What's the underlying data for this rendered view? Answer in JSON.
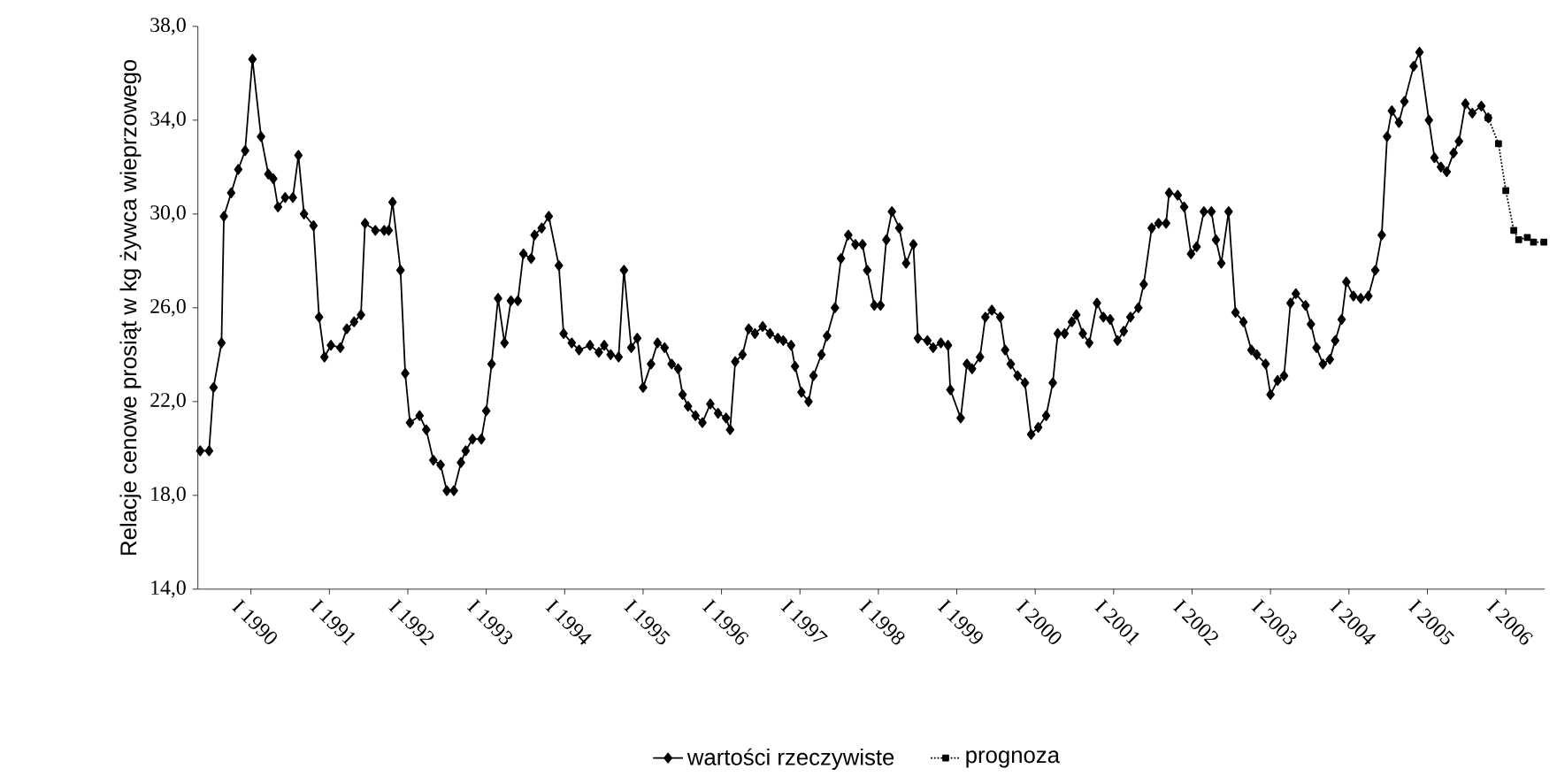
{
  "chart_data": {
    "type": "line",
    "ylabel": "Relacje cenowe prosiąt w kg żywca wieprzowego",
    "xlim": [
      "1989-04-29",
      "2006-07-01"
    ],
    "xticks": [
      {
        "value": "1990-01",
        "label": "I 1990"
      },
      {
        "value": "1991-01",
        "label": "I 1991"
      },
      {
        "value": "1992-01",
        "label": "I 1992"
      },
      {
        "value": "1993-01",
        "label": "I 1993"
      },
      {
        "value": "1994-01",
        "label": "I 1994"
      },
      {
        "value": "1995-01",
        "label": "I 1995"
      },
      {
        "value": "1996-01",
        "label": "I 1996"
      },
      {
        "value": "1997-01",
        "label": "I 1997"
      },
      {
        "value": "1998-01",
        "label": "I 1998"
      },
      {
        "value": "1999-01",
        "label": "I 1999"
      },
      {
        "value": "2000-01",
        "label": "I 2000"
      },
      {
        "value": "2001-01",
        "label": "I 2001"
      },
      {
        "value": "2002-01",
        "label": "I 2002"
      },
      {
        "value": "2003-01",
        "label": "I 2003"
      },
      {
        "value": "2004-01",
        "label": "I 2004"
      },
      {
        "value": "2005-01",
        "label": "I 2005"
      },
      {
        "value": "2006-01",
        "label": "I 2006"
      }
    ],
    "ylim": [
      14,
      38
    ],
    "yticks": [
      {
        "value": 14,
        "label": "14,0"
      },
      {
        "value": 18,
        "label": "18,0"
      },
      {
        "value": 22,
        "label": "22,0"
      },
      {
        "value": 26,
        "label": "26,0"
      },
      {
        "value": 30,
        "label": "30,0"
      },
      {
        "value": 34,
        "label": "34,0"
      },
      {
        "value": 38,
        "label": "38,0"
      }
    ],
    "grid": false,
    "legend": "bottom",
    "series": [
      {
        "name": "wartości rzeczywiste",
        "color": "#000000",
        "marker": "diamond",
        "line_style": "solid",
        "x": [
          "1989-05-10",
          "1989-06-20",
          "1989-07-11",
          "1989-08-17",
          "1989-08-28",
          "1989-10-01",
          "1989-11-03",
          "1989-12-05",
          "1990-01-08",
          "1990-02-17",
          "1990-03-23",
          "1990-04-15",
          "1990-05-07",
          "1990-06-09",
          "1990-07-15",
          "1990-08-10",
          "1990-09-05",
          "1990-10-19",
          "1990-11-14",
          "1990-12-09",
          "1991-01-08",
          "1991-02-21",
          "1991-03-23",
          "1991-04-26",
          "1991-05-28",
          "1991-06-16",
          "1991-08-03",
          "1991-09-13",
          "1991-10-04",
          "1991-10-22",
          "1991-11-28",
          "1991-12-20",
          "1992-01-11",
          "1992-02-25",
          "1992-03-27",
          "1992-04-29",
          "1992-06-02",
          "1992-07-01",
          "1992-08-03",
          "1992-09-05",
          "1992-09-27",
          "1992-10-29",
          "1992-12-09",
          "1993-01-01",
          "1993-01-26",
          "1993-02-25",
          "1993-03-27",
          "1993-04-26",
          "1993-05-28",
          "1993-06-23",
          "1993-07-29",
          "1993-08-14",
          "1993-09-16",
          "1993-10-19",
          "1993-12-05",
          "1993-12-27",
          "1994-02-03",
          "1994-03-09",
          "1994-04-29",
          "1994-06-09",
          "1994-07-04",
          "1994-08-03",
          "1994-09-09",
          "1994-10-04",
          "1994-11-07",
          "1994-12-05",
          "1995-01-01",
          "1995-02-07",
          "1995-03-09",
          "1995-04-11",
          "1995-05-14",
          "1995-06-13",
          "1995-07-04",
          "1995-07-29",
          "1995-09-02",
          "1995-10-04",
          "1995-11-10",
          "1995-12-16",
          "1996-01-22",
          "1996-02-10",
          "1996-03-05",
          "1996-04-08",
          "1996-05-07",
          "1996-06-05",
          "1996-07-11",
          "1996-08-14",
          "1996-09-20",
          "1996-10-15",
          "1996-11-21",
          "1996-12-09",
          "1997-01-08",
          "1997-02-10",
          "1997-03-05",
          "1997-04-11",
          "1997-05-07",
          "1997-06-13",
          "1997-07-11",
          "1997-08-14",
          "1997-09-16",
          "1997-10-19",
          "1997-11-10",
          "1997-12-13",
          "1998-01-11",
          "1998-02-07",
          "1998-03-05",
          "1998-04-08",
          "1998-05-10",
          "1998-06-13",
          "1998-07-04",
          "1998-08-17",
          "1998-09-13",
          "1998-10-19",
          "1998-11-21",
          "1998-12-02",
          "1999-01-19",
          "1999-02-17",
          "1999-03-13",
          "1999-04-19",
          "1999-05-14",
          "1999-06-13",
          "1999-07-22",
          "1999-08-14",
          "1999-09-09",
          "1999-10-11",
          "1999-11-14",
          "1999-12-13",
          "2000-01-15",
          "2000-02-21",
          "2000-03-23",
          "2000-04-15",
          "2000-05-17",
          "2000-06-20",
          "2000-07-11",
          "2000-08-10",
          "2000-09-09",
          "2000-10-15",
          "2000-11-14",
          "2000-12-16",
          "2001-01-19",
          "2001-02-17",
          "2001-03-20",
          "2001-04-26",
          "2001-05-21",
          "2001-06-27",
          "2001-07-29",
          "2001-09-02",
          "2001-09-16",
          "2001-10-26",
          "2001-11-25",
          "2001-12-27",
          "2002-01-22",
          "2002-02-25",
          "2002-04-01",
          "2002-04-22",
          "2002-05-17",
          "2002-06-20",
          "2002-07-22",
          "2002-08-28",
          "2002-10-04",
          "2002-10-29",
          "2002-12-09",
          "2003-01-01",
          "2003-02-03",
          "2003-03-05",
          "2003-04-04",
          "2003-04-29",
          "2003-06-13",
          "2003-07-08",
          "2003-08-03",
          "2003-09-02",
          "2003-10-04",
          "2003-10-29",
          "2003-11-28",
          "2003-12-20",
          "2004-01-22",
          "2004-02-25",
          "2004-04-01",
          "2004-05-03",
          "2004-06-02",
          "2004-06-27",
          "2004-07-19",
          "2004-08-21",
          "2004-09-16",
          "2004-10-29",
          "2004-11-25",
          "2005-01-08",
          "2005-02-03",
          "2005-03-05",
          "2005-04-01",
          "2005-05-03",
          "2005-05-28",
          "2005-06-27",
          "2005-07-29",
          "2005-09-09",
          "2005-10-11"
        ],
        "values": [
          19.9,
          19.9,
          22.6,
          24.5,
          29.9,
          30.9,
          31.9,
          32.7,
          36.6,
          33.3,
          31.7,
          31.5,
          30.3,
          30.7,
          30.7,
          32.5,
          30.0,
          29.5,
          25.6,
          23.9,
          24.4,
          24.3,
          25.1,
          25.4,
          25.7,
          29.6,
          29.3,
          29.3,
          29.3,
          30.5,
          27.6,
          23.2,
          21.1,
          21.4,
          20.8,
          19.5,
          19.3,
          18.2,
          18.2,
          19.4,
          19.9,
          20.4,
          20.4,
          21.6,
          23.6,
          26.4,
          24.5,
          26.3,
          26.3,
          28.3,
          28.1,
          29.1,
          29.4,
          29.9,
          27.8,
          24.9,
          24.5,
          24.2,
          24.4,
          24.1,
          24.4,
          24.0,
          23.9,
          27.6,
          24.3,
          24.7,
          22.6,
          23.6,
          24.5,
          24.3,
          23.6,
          23.4,
          22.3,
          21.8,
          21.4,
          21.1,
          21.9,
          21.5,
          21.3,
          20.8,
          23.7,
          24.0,
          25.1,
          24.9,
          25.2,
          24.9,
          24.7,
          24.6,
          24.4,
          23.5,
          22.4,
          22.0,
          23.1,
          24.0,
          24.8,
          26.0,
          28.1,
          29.1,
          28.7,
          28.7,
          27.6,
          26.1,
          26.1,
          28.9,
          30.1,
          29.4,
          27.9,
          28.7,
          24.7,
          24.6,
          24.3,
          24.5,
          24.4,
          22.5,
          21.3,
          23.6,
          23.4,
          23.9,
          25.6,
          25.9,
          25.6,
          24.2,
          23.6,
          23.1,
          22.8,
          20.6,
          20.9,
          21.4,
          22.8,
          24.9,
          24.9,
          25.4,
          25.7,
          24.9,
          24.5,
          26.2,
          25.6,
          25.5,
          24.6,
          25.0,
          25.6,
          26.0,
          27.0,
          29.4,
          29.6,
          29.6,
          30.9,
          30.8,
          30.3,
          28.3,
          28.6,
          30.1,
          30.1,
          28.9,
          27.9,
          30.1,
          25.8,
          25.4,
          24.2,
          24.0,
          23.6,
          22.3,
          22.9,
          23.1,
          26.2,
          26.6,
          26.1,
          25.3,
          24.3,
          23.6,
          23.8,
          24.6,
          25.5,
          27.1,
          26.5,
          26.4,
          26.5,
          27.6,
          29.1,
          33.3,
          34.4,
          33.9,
          34.8,
          36.3,
          36.9,
          34.0,
          32.4,
          32.0,
          31.8,
          32.6,
          33.1,
          34.7,
          34.3,
          34.6,
          34.1
        ]
      },
      {
        "name": "prognoza",
        "color": "#000000",
        "marker": "square",
        "line_style": "dotted",
        "x": [
          "2005-10-11",
          "2005-11-28",
          "2006-01-01",
          "2006-02-07",
          "2006-03-02",
          "2006-04-11",
          "2006-05-10",
          "2006-06-27"
        ],
        "values": [
          34.1,
          33.0,
          31.0,
          29.3,
          28.9,
          29.0,
          28.8,
          28.8
        ]
      }
    ]
  }
}
